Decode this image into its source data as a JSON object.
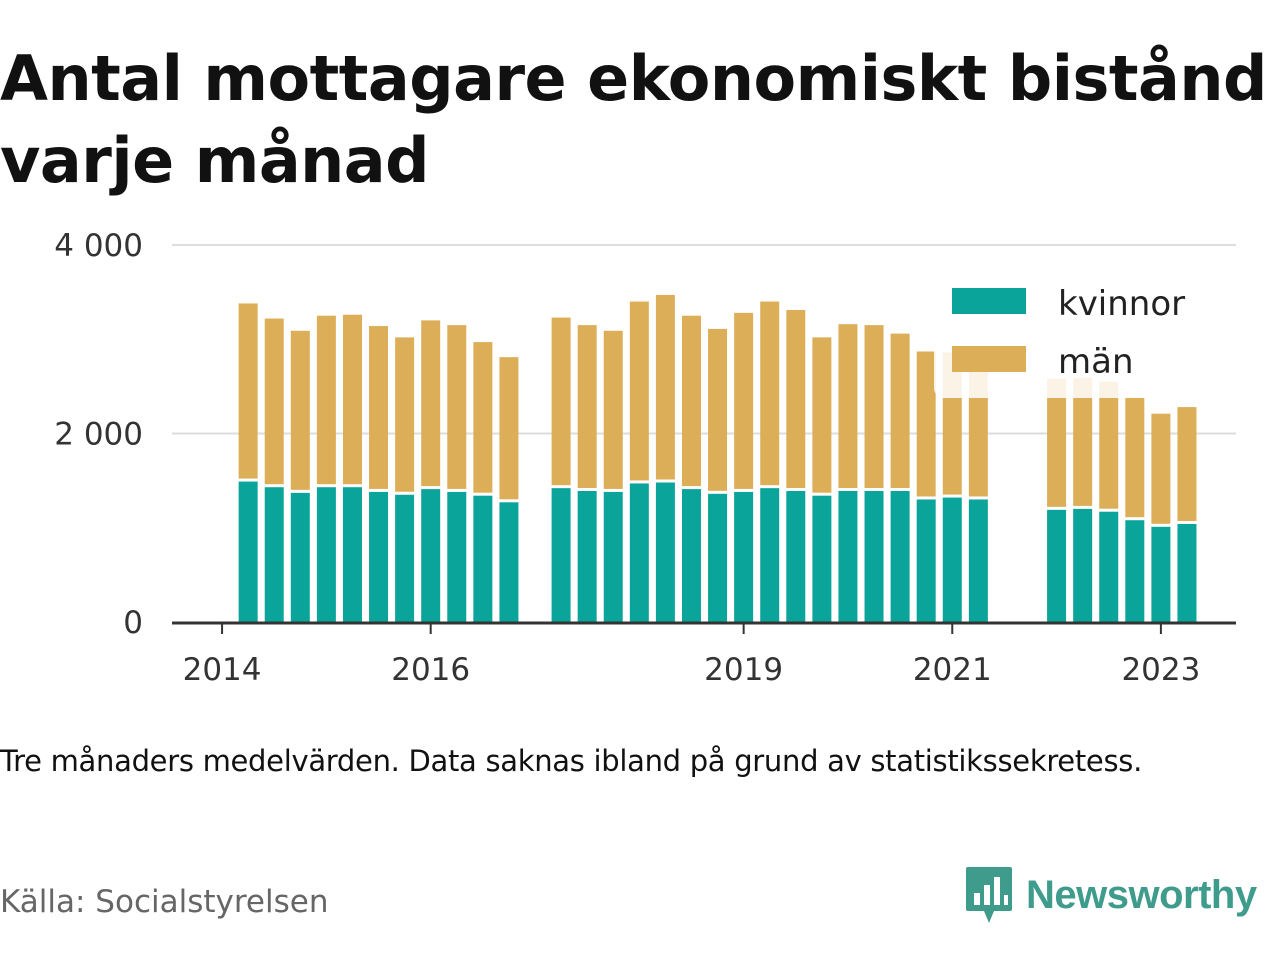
{
  "title": "Antal mottagare ekonomiskt bistånd varje månad",
  "note": "Tre månaders medelvärden. Data saknas ibland på grund av statistikssekretess.",
  "source": "Källa: Socialstyrelsen",
  "brand": "Newsworthy",
  "colors": {
    "kvinnor": "#0aa49a",
    "man": "#ddae58",
    "grid": "#dddddd",
    "axis": "#333333",
    "brand": "#3f9c8c"
  },
  "chart_data": {
    "type": "bar",
    "stacked": true,
    "y_ticks": [
      0,
      2000,
      4000
    ],
    "y_tick_labels": [
      "0",
      "2 000",
      "4 000"
    ],
    "ylim": [
      0,
      4000
    ],
    "x_ticks": [
      2014,
      2016,
      2019,
      2021,
      2023
    ],
    "x_tick_labels": [
      "2014",
      "2016",
      "2019",
      "2021",
      "2023"
    ],
    "x_range": [
      2013.52,
      2023.72
    ],
    "legend_position": "top-right",
    "grid": true,
    "x": [
      2014.25,
      2014.5,
      2014.75,
      2015,
      2015.25,
      2015.5,
      2015.75,
      2016,
      2016.25,
      2016.5,
      2016.75,
      2017.25,
      2017.5,
      2017.75,
      2018,
      2018.25,
      2018.5,
      2018.75,
      2019,
      2019.25,
      2019.5,
      2019.75,
      2020,
      2020.25,
      2020.5,
      2020.75,
      2021,
      2021.25,
      2022,
      2022.25,
      2022.5,
      2022.75,
      2023,
      2023.25
    ],
    "series": [
      {
        "name": "kvinnor",
        "values": [
          1490,
          1430,
          1370,
          1430,
          1430,
          1380,
          1350,
          1410,
          1380,
          1340,
          1270,
          1420,
          1390,
          1380,
          1470,
          1480,
          1410,
          1360,
          1380,
          1420,
          1390,
          1340,
          1390,
          1390,
          1390,
          1300,
          1320,
          1300,
          1190,
          1200,
          1170,
          1080,
          1010,
          1040
        ]
      },
      {
        "name": "män",
        "values": [
          1890,
          1790,
          1720,
          1820,
          1830,
          1760,
          1670,
          1790,
          1770,
          1630,
          1540,
          1810,
          1760,
          1710,
          1930,
          1990,
          1840,
          1750,
          1900,
          1980,
          1920,
          1680,
          1770,
          1760,
          1670,
          1570,
          1540,
          1590,
          1390,
          1390,
          1380,
          1300,
          1200,
          1240
        ]
      }
    ]
  }
}
